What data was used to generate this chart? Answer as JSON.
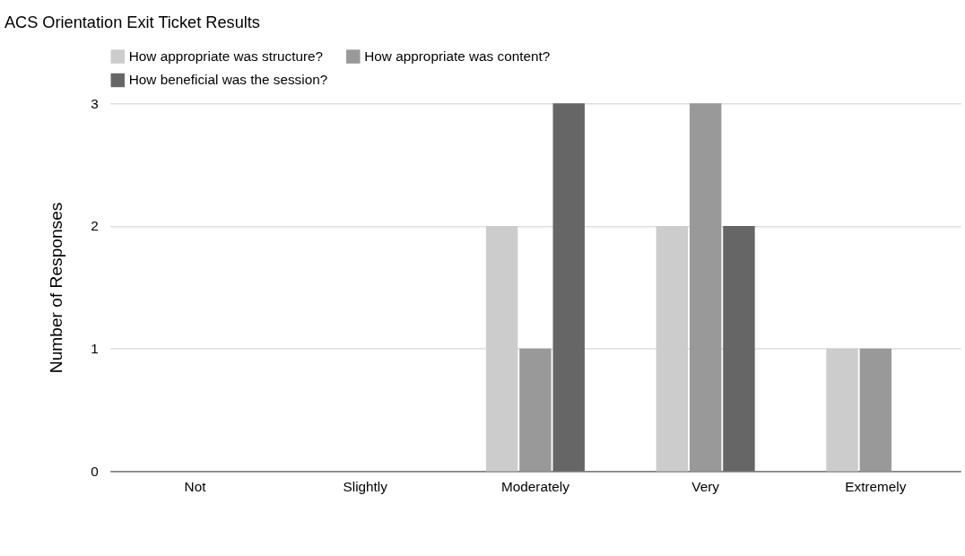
{
  "chart_data": {
    "type": "bar",
    "title": "ACS Orientation Exit Ticket Results",
    "ylabel": "Number of Responses",
    "categories": [
      "Not",
      "Slightly",
      "Moderately",
      "Very",
      "Extremely"
    ],
    "series": [
      {
        "name": "How appropriate was structure?",
        "color": "#cccccc",
        "values": [
          0,
          0,
          2,
          2,
          1
        ]
      },
      {
        "name": "How appropriate was content?",
        "color": "#999999",
        "values": [
          0,
          0,
          1,
          3,
          1
        ]
      },
      {
        "name": "How beneficial was the session?",
        "color": "#666666",
        "values": [
          0,
          0,
          3,
          2,
          0
        ]
      }
    ],
    "ylim": [
      0,
      3
    ],
    "yticks": [
      0,
      1,
      2,
      3
    ],
    "grid": "y",
    "legend": "top"
  }
}
